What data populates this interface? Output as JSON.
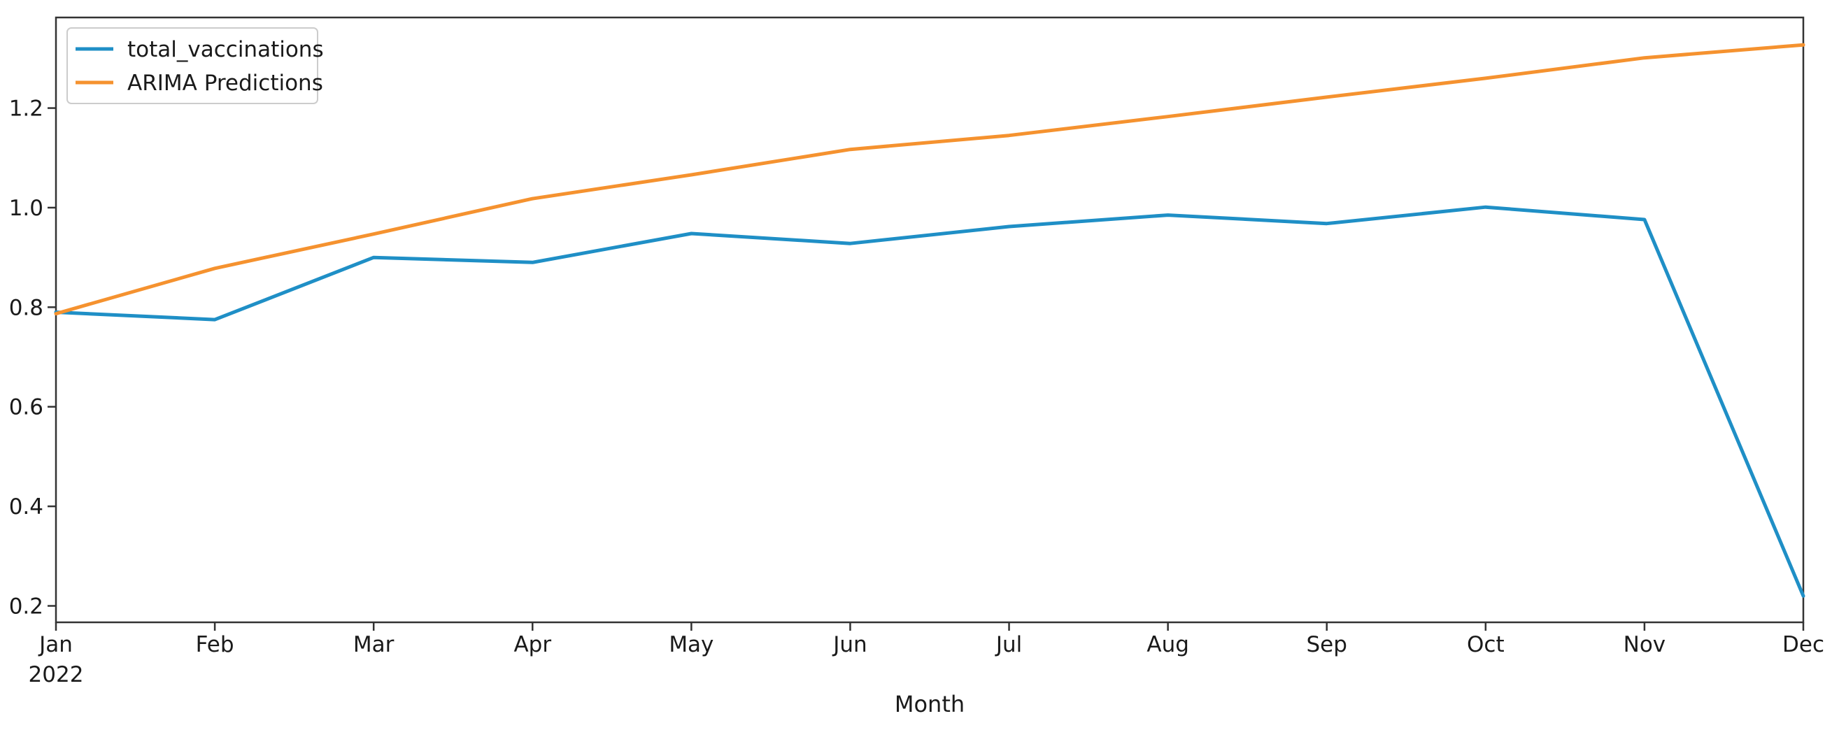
{
  "chart_data": {
    "type": "line",
    "x": [
      "Jan",
      "Feb",
      "Mar",
      "Apr",
      "May",
      "Jun",
      "Jul",
      "Aug",
      "Sep",
      "Oct",
      "Nov",
      "Dec"
    ],
    "x_year_label": "2022",
    "xlabel": "Month",
    "ylabel": "",
    "ylim": [
      0.167,
      1.382
    ],
    "yticks": [
      0.2,
      0.4,
      0.6,
      0.8,
      1.0,
      1.2
    ],
    "ytick_labels": [
      "0.2",
      "0.4",
      "0.6",
      "0.8",
      "1.0",
      "1.2"
    ],
    "grid": false,
    "legend_position": "top-left",
    "series": [
      {
        "name": "total_vaccinations",
        "color": "#1f8fc6",
        "values": [
          0.79,
          0.775,
          0.9,
          0.89,
          0.948,
          0.928,
          0.962,
          0.985,
          0.968,
          1.001,
          0.976,
          0.22
        ]
      },
      {
        "name": "ARIMA Predictions",
        "color": "#f5922f",
        "values": [
          0.787,
          0.878,
          0.947,
          1.018,
          1.066,
          1.117,
          1.145,
          1.183,
          1.222,
          1.26,
          1.301,
          1.327
        ]
      }
    ]
  }
}
